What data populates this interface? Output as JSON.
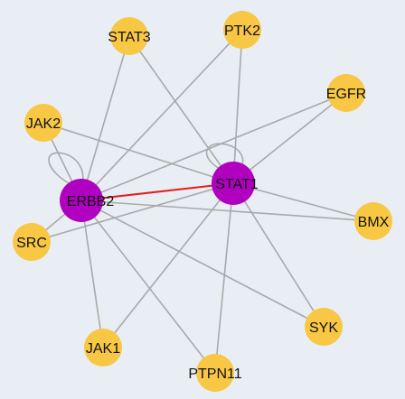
{
  "nodes": [
    {
      "label": "STAT3"
    },
    {
      "label": "PTK2"
    },
    {
      "label": "EGFR"
    },
    {
      "label": "JAK2"
    },
    {
      "label": "ERBB2"
    },
    {
      "label": "STAT1"
    },
    {
      "label": "BMX"
    },
    {
      "label": "SRC"
    },
    {
      "label": "SYK"
    },
    {
      "label": "JAK1"
    },
    {
      "label": "PTPN11"
    }
  ]
}
